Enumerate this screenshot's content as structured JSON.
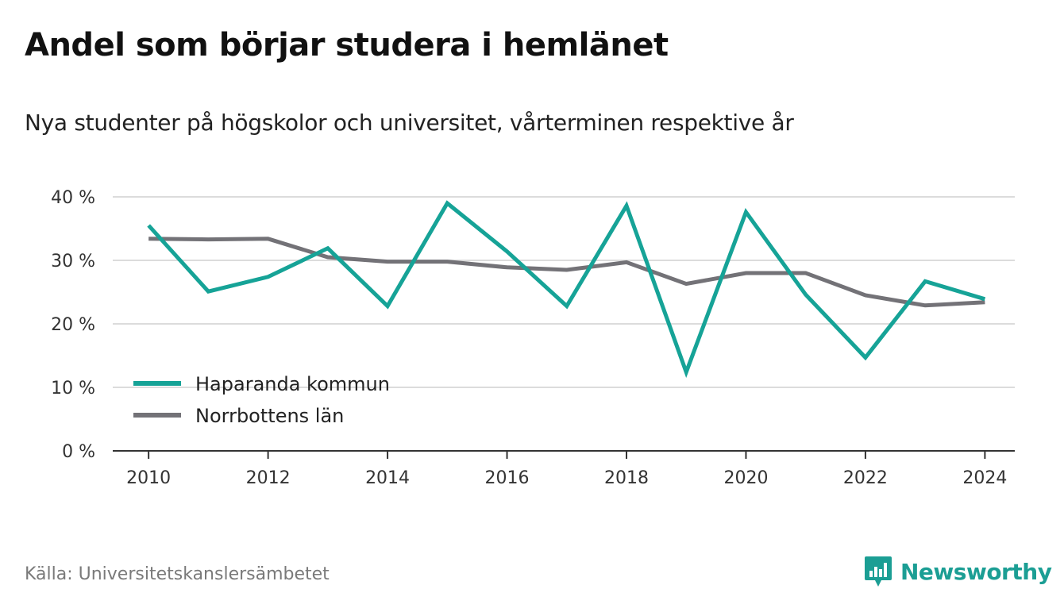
{
  "title": "Andel som börjar studera i hemlänet",
  "subtitle": "Nya studenter på högskolor och universitet, vårterminen respektive år",
  "source": "Källa: Universitetskanslersämbetet",
  "brand": {
    "name": "Newsworthy",
    "icon": "newsworthy-logo-icon",
    "color": "#1b9e94"
  },
  "chart_data": {
    "type": "line",
    "x": [
      2010,
      2011,
      2012,
      2013,
      2014,
      2015,
      2016,
      2017,
      2018,
      2019,
      2020,
      2021,
      2022,
      2023,
      2024
    ],
    "series": [
      {
        "name": "Haparanda kommun",
        "color": "#16a397",
        "values": [
          35.5,
          25.1,
          27.4,
          31.9,
          22.8,
          39.0,
          31.4,
          22.8,
          38.6,
          12.4,
          37.6,
          24.6,
          14.7,
          26.7,
          23.9
        ]
      },
      {
        "name": "Norrbottens län",
        "color": "#737277",
        "values": [
          33.4,
          33.3,
          33.4,
          30.5,
          29.8,
          29.8,
          28.9,
          28.5,
          29.7,
          26.3,
          28.0,
          28.0,
          24.5,
          22.9,
          23.4
        ]
      }
    ],
    "yticks": [
      0,
      10,
      20,
      30,
      40
    ],
    "ytick_labels": [
      "0 %",
      "10 %",
      "20 %",
      "30 %",
      "40 %"
    ],
    "xticks": [
      2010,
      2012,
      2014,
      2016,
      2018,
      2020,
      2022,
      2024
    ],
    "xtick_labels": [
      "2010",
      "2012",
      "2014",
      "2016",
      "2018",
      "2020",
      "2022",
      "2024"
    ],
    "ylim": [
      0,
      40
    ],
    "xlim": [
      2009.4,
      2024.5
    ],
    "grid": true,
    "legend_position": "bottom-left"
  }
}
